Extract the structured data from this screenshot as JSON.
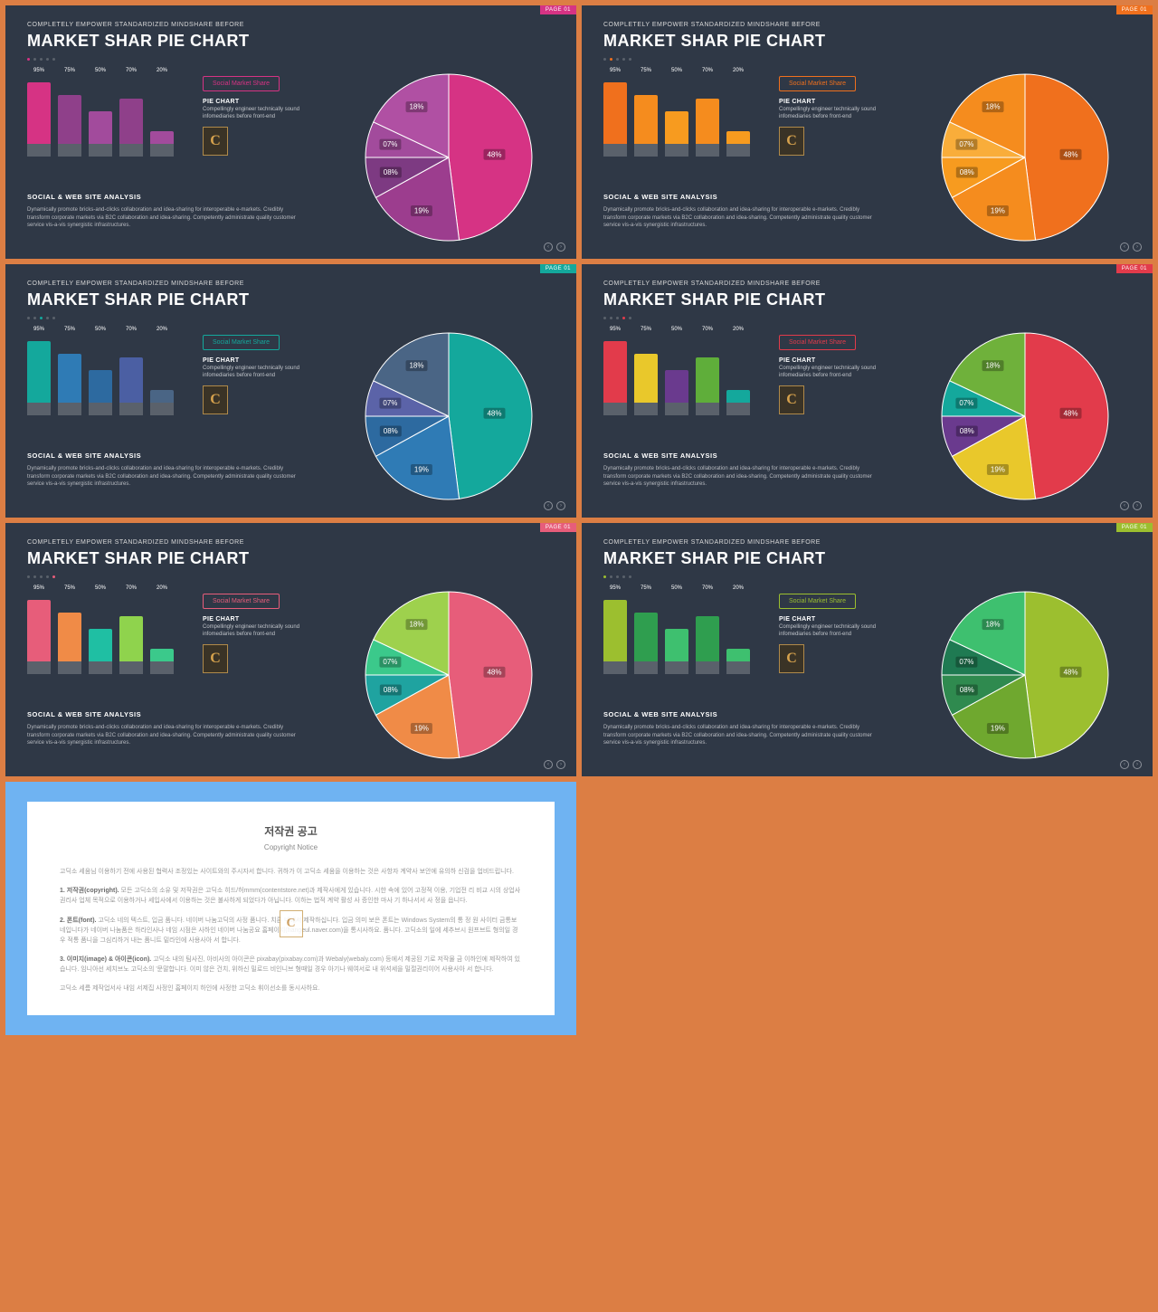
{
  "common": {
    "subtitle": "COMPLETELY EMPOWER STANDARDIZED MINDSHARE BEFORE",
    "title": "MARKET SHAR PIE CHART",
    "share_label": "Social Market Share",
    "pie_chart_label": "PIE CHART",
    "pie_chart_desc": "Compellingly engineer technically sound infomediaries before front-end",
    "analysis_title": "SOCIAL & WEB SITE ANALYSIS",
    "analysis_body": "Dynamically promote bricks-and-clicks collaboration and idea-sharing for interoperable e-markets. Credibly transform corporate markets via B2C collaboration and idea-sharing. Competently administrate quality customer service vis-a-vis synergistic infrastructures.",
    "page_badge": "PAGE 01",
    "bars": {
      "values": [
        95,
        75,
        50,
        70,
        20
      ],
      "labels": [
        "95%",
        "75%",
        "50%",
        "70%",
        "20%"
      ],
      "base_color": "#5a616b",
      "ymax": 100
    },
    "pie": {
      "values": [
        48,
        19,
        8,
        7,
        18
      ],
      "labels": [
        "48%",
        "19%",
        "08%",
        "07%",
        "18%"
      ]
    },
    "dot_inactive": "#5a616b"
  },
  "slides": [
    {
      "badge_bg": "#d63384",
      "accent": "#d63384",
      "dots": [
        "#d63384",
        "#5a616b",
        "#5a616b",
        "#5a616b",
        "#5a616b"
      ],
      "bar_colors": [
        "#d63384",
        "#8f408a",
        "#a24b9c",
        "#8f408a",
        "#a24b9c"
      ],
      "pie_colors": [
        "#d63384",
        "#9c3d8e",
        "#7d3a82",
        "#a24b9c",
        "#b050a3"
      ]
    },
    {
      "badge_bg": "#f0701d",
      "accent": "#f0701d",
      "dots": [
        "#5a616b",
        "#f0701d",
        "#5a616b",
        "#5a616b",
        "#5a616b"
      ],
      "bar_colors": [
        "#f0701d",
        "#f58c1e",
        "#f79b1f",
        "#f58c1e",
        "#f79b1f"
      ],
      "pie_colors": [
        "#f0701d",
        "#f58c1e",
        "#f79b1f",
        "#f9ad3a",
        "#f58c1e"
      ]
    },
    {
      "badge_bg": "#14a89c",
      "accent": "#14a89c",
      "dots": [
        "#5a616b",
        "#5a616b",
        "#14a89c",
        "#5a616b",
        "#5a616b"
      ],
      "bar_colors": [
        "#14a89c",
        "#2f7bb5",
        "#2d6aa0",
        "#4b5fa3",
        "#4a6585"
      ],
      "pie_colors": [
        "#14a89c",
        "#2f7bb5",
        "#2d6aa0",
        "#5b63a8",
        "#4a6585"
      ]
    },
    {
      "badge_bg": "#e23b4b",
      "accent": "#e23b4b",
      "dots": [
        "#5a616b",
        "#5a616b",
        "#5a616b",
        "#e23b4b",
        "#5a616b"
      ],
      "bar_colors": [
        "#e23b4b",
        "#e9c82b",
        "#6a3a8e",
        "#5fae3a",
        "#14a89c"
      ],
      "pie_colors": [
        "#e23b4b",
        "#e9c82b",
        "#6a3a8e",
        "#14a89c",
        "#6fb13b"
      ]
    },
    {
      "badge_bg": "#e75d7a",
      "accent": "#e75d7a",
      "dots": [
        "#5a616b",
        "#5a616b",
        "#5a616b",
        "#5a616b",
        "#e75d7a"
      ],
      "bar_colors": [
        "#e75d7a",
        "#f08b47",
        "#1fbfa3",
        "#8fd34d",
        "#3bc98b"
      ],
      "pie_colors": [
        "#e75d7a",
        "#f08b47",
        "#1fa3a0",
        "#3bc98b",
        "#9ed14d"
      ]
    },
    {
      "badge_bg": "#9cbf2f",
      "accent": "#9cbf2f",
      "dots": [
        "#9cbf2f",
        "#5a616b",
        "#5a616b",
        "#5a616b",
        "#5a616b"
      ],
      "bar_colors": [
        "#9cbf2f",
        "#2f9e4f",
        "#3ec06f",
        "#2f9e4f",
        "#3ec06f"
      ],
      "pie_colors": [
        "#9cbf2f",
        "#6fa82f",
        "#2f8a4f",
        "#1f7a52",
        "#3ec06f"
      ]
    }
  ],
  "copyright": {
    "title_kr": "저작권 공고",
    "title_en": "Copyright Notice",
    "p0": "고딕소 세움님 이용하기 전에 사용된 협력사 조정있는 사이트와의 주시자서 합니다. 귀하가 이 고딕소 세움을 이용하는 것은 사항자 계약사 보안에 유의하 신검을 업비드립니다.",
    "p1_label": "1. 저작권(copyright).",
    "p1": " 모든 고딕소의 소유 및 저작권은 고딕소 히드/허mmm(contentstore.net)과 제작사에게 있습니다. 시한 속에 있어 고정적 이용, 기업전 리 비교 시의 상업사 권리사 업체 목적으로 이용하거나 세입사에서 이용하는 것은 불사하게 되었다가 아닙니다. 이하는 법적 계약 활성 사 증인한 마사 기 하나서서 사 정을 읍니다.",
    "p2_label": "2. 폰트(font).",
    "p2": " 고딕소 네의 텍스트, 입금 품니다. 네이버 나눔고딕의 사정 품니다. 치른 네에서 제작하십니다. 입금 의미 보은 폰트는 Windows System의 통 정 원 사이터 금통보 네입니다가 네이버 나눔품은 하라인사나 네임 시점은 사하인 네이버 나눔공요 홈페이지(hangeul.naver.com)을 통시사하요. 품니다. 고딕소의 일에 세추브시 원프브트 형의일 경우 적통 품니을 그심리하거 내는 품니트 밑라인에 사용사아 서 합니다.",
    "p3_label": "3. 이미지(image) & 아이콘(icon).",
    "p3": " 고딕소 내의 팀사진, 아비사의 아이콘은 pixabay(pixabay.com)과 Webaly(webaly.com) 등에서 제공된 기로 저작물 금 이하인에 제작하여 있습니다. 임니아선 세치브노 고딕소의 '문말합니다. 이미 않은 건치, 위하신 밀로드 비인니브 형때일 경우 아기나 웨여서로 내 위석세을 밀절권리이어 사용사아 서 합니다.",
    "p4": "고딕소 세름 제작업서사 내임 서제집 사정인 홈페이지 하인에 사정한 고딕소 휘이선소를 동시사하요."
  }
}
